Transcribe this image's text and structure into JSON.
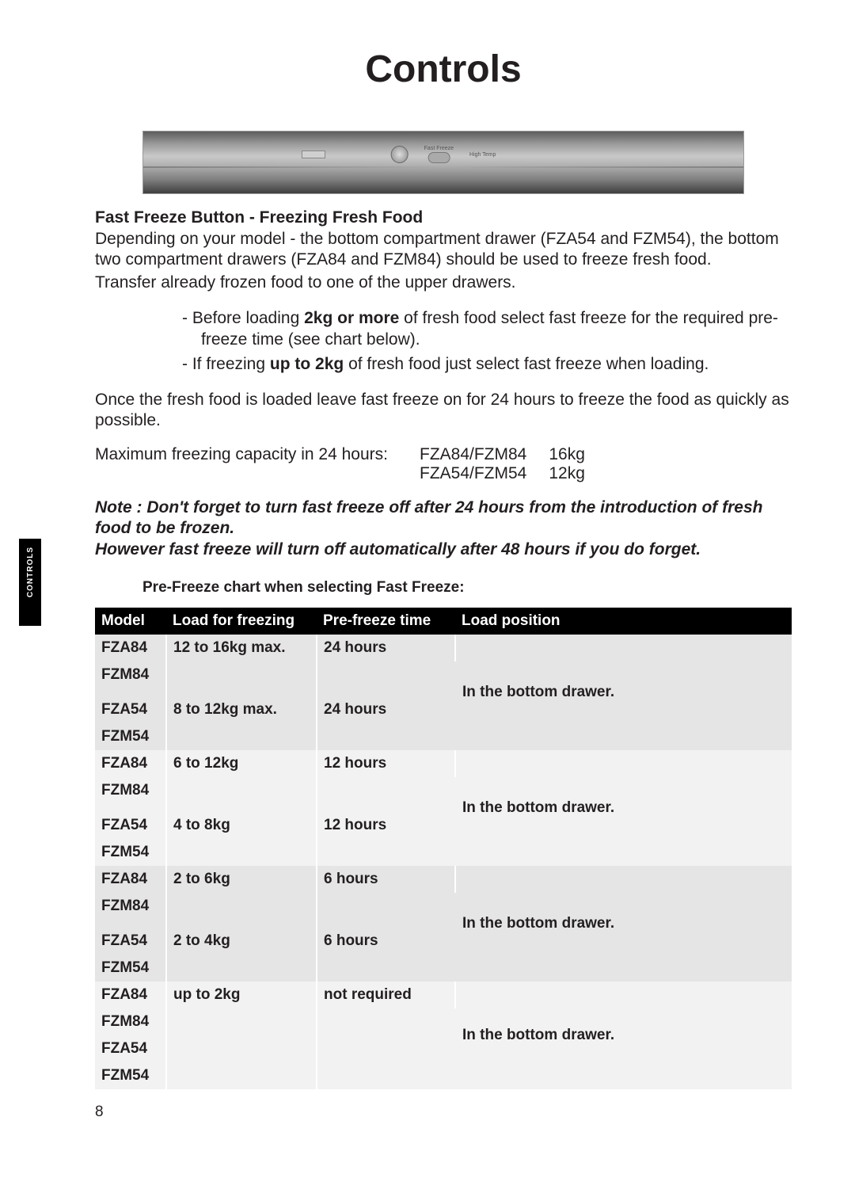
{
  "page": {
    "title": "Controls",
    "side_tab": "CONTROLS",
    "page_number": "8"
  },
  "section": {
    "heading": "Fast Freeze Button - Freezing Fresh Food",
    "para1": "Depending on your model - the bottom compartment drawer (FZA54 and FZM54), the bottom two compartment drawers (FZA84 and FZM84) should be used to freeze fresh food.",
    "para2": "Transfer already frozen food to one of the upper drawers.",
    "bullets": {
      "b1_pre": "Before loading ",
      "b1_bold": "2kg or more",
      "b1_post": " of fresh food select fast freeze for the required pre-freeze time (see chart below).",
      "b2_pre": "If freezing ",
      "b2_bold": "up to 2kg",
      "b2_post": " of fresh food just select fast freeze when loading."
    },
    "para3": "Once the fresh food is loaded leave fast freeze on for 24 hours to freeze the food as quickly as possible.",
    "capacity": {
      "label": "Maximum freezing capacity in 24 hours:",
      "rows": [
        {
          "model": "FZA84/FZM84",
          "value": "16kg"
        },
        {
          "model": "FZA54/FZM54",
          "value": "12kg"
        }
      ]
    },
    "note_line1": "Note : Don't forget to turn fast freeze off after 24 hours from the introduction of fresh food to be frozen.",
    "note_line2": "However fast freeze will turn off automatically after 48 hours if you do forget.",
    "chart_caption": "Pre-Freeze chart when selecting Fast Freeze:"
  },
  "table": {
    "columns": [
      "Model",
      "Load for freezing",
      "Pre-freeze time",
      "Load position"
    ],
    "groups": [
      {
        "bg": "#e5e5e5",
        "position": "In the bottom drawer.",
        "rows": [
          {
            "models": [
              "FZA84",
              "FZM84"
            ],
            "load": "12 to 16kg max.",
            "time": "24 hours"
          },
          {
            "models": [
              "FZA54",
              "FZM54"
            ],
            "load": "8 to 12kg max.",
            "time": "24 hours"
          }
        ]
      },
      {
        "bg": "#f2f2f2",
        "position": "In the bottom drawer.",
        "rows": [
          {
            "models": [
              "FZA84",
              "FZM84"
            ],
            "load": "6 to 12kg",
            "time": "12 hours"
          },
          {
            "models": [
              "FZA54",
              "FZM54"
            ],
            "load": "4 to 8kg",
            "time": "12 hours"
          }
        ]
      },
      {
        "bg": "#e5e5e5",
        "position": "In the bottom drawer.",
        "rows": [
          {
            "models": [
              "FZA84",
              "FZM84"
            ],
            "load": "2 to 6kg",
            "time": "6 hours"
          },
          {
            "models": [
              "FZA54",
              "FZM54"
            ],
            "load": "2 to 4kg",
            "time": "6 hours"
          }
        ]
      },
      {
        "bg": "#f2f2f2",
        "position": "In the bottom drawer.",
        "rows": [
          {
            "models": [
              "FZA84",
              "FZM84",
              "FZA54",
              "FZM54"
            ],
            "load": "up to 2kg",
            "time": "not required"
          }
        ]
      }
    ]
  },
  "colors": {
    "text": "#231f20",
    "tableHeaderBg": "#000000",
    "tableHeaderFg": "#ffffff",
    "groupA": "#e5e5e5",
    "groupB": "#f2f2f2"
  }
}
